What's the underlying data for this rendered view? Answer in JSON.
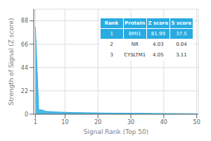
{
  "chart_data": {
    "type": "area",
    "xlabel": "Signal Rank (Top 50)",
    "ylabel": "Strength of Signal (Z score)",
    "x": [
      1,
      2,
      3,
      4,
      5,
      6,
      7,
      8,
      9,
      10,
      11,
      12,
      13,
      14,
      15,
      16,
      17,
      18,
      19,
      20,
      21,
      22,
      23,
      24,
      25,
      26,
      27,
      28,
      29,
      30,
      31,
      32,
      33,
      34,
      35,
      36,
      37,
      38,
      39,
      40,
      41,
      42,
      43,
      44,
      45,
      46,
      47,
      48,
      49,
      50
    ],
    "values": [
      81.99,
      4.03,
      4.05,
      2.8,
      2.5,
      2.3,
      2.1,
      2.0,
      1.9,
      1.8,
      1.7,
      1.6,
      1.55,
      1.5,
      1.45,
      1.4,
      1.35,
      1.3,
      1.25,
      1.2,
      1.15,
      1.1,
      1.08,
      1.05,
      1.02,
      1.0,
      0.98,
      0.95,
      0.93,
      0.9,
      0.88,
      0.85,
      0.83,
      0.8,
      0.78,
      0.75,
      0.73,
      0.7,
      0.68,
      0.65,
      0.63,
      0.6,
      0.58,
      0.55,
      0.53,
      0.5,
      0.48,
      0.45,
      0.43,
      0.4
    ],
    "color": "#29abe2",
    "xlim": [
      0.5,
      50.5
    ],
    "xticks": [
      1,
      10,
      20,
      30,
      40,
      50
    ],
    "ylim": [
      0,
      99
    ],
    "yticks": [
      0,
      22,
      44,
      66,
      88
    ],
    "grid": true,
    "table": [
      [
        "Rank",
        "Protein",
        "Z score",
        "S score"
      ],
      [
        "1",
        "BMI1",
        "81.99",
        "37.5"
      ],
      [
        "2",
        "NR",
        "4.03",
        "0.04"
      ],
      [
        "3",
        "CYSLTM1",
        "4.05",
        "3.11"
      ]
    ]
  }
}
